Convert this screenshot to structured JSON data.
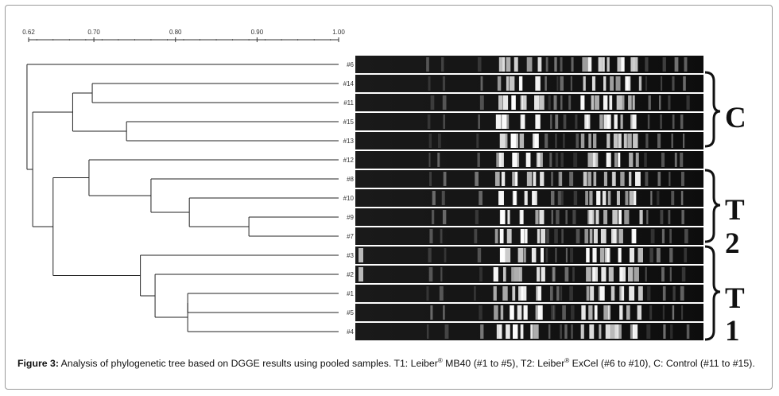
{
  "scale": {
    "ticks": [
      {
        "value": 0.62,
        "label": "0.62"
      },
      {
        "value": 0.7,
        "label": "0.70"
      },
      {
        "value": 0.8,
        "label": "0.80"
      },
      {
        "value": 0.9,
        "label": "0.90"
      },
      {
        "value": 1.0,
        "label": "1.00"
      }
    ]
  },
  "samples": [
    "#6",
    "#14",
    "#11",
    "#15",
    "#13",
    "#12",
    "#8",
    "#10",
    "#9",
    "#7",
    "#3",
    "#2",
    "#1",
    "#5",
    "#4"
  ],
  "dendrogram": [
    {
      "a": "#1",
      "b": "#5",
      "similarity": 0.815
    },
    {
      "a": "#1,#5",
      "b": "#4",
      "similarity": 0.815
    },
    {
      "a": "#1,#4,#5",
      "b": "#2",
      "similarity": 0.775
    },
    {
      "a": "#1,#2,#4,#5",
      "b": "#3",
      "similarity": 0.757
    },
    {
      "a": "#9",
      "b": "#7",
      "similarity": 0.89
    },
    {
      "a": "#7,#9",
      "b": "#10",
      "similarity": 0.817
    },
    {
      "a": "#7,#9,#10",
      "b": "#8",
      "similarity": 0.77
    },
    {
      "a": "#15",
      "b": "#13",
      "similarity": 0.74
    },
    {
      "a": "#14",
      "b": "#11",
      "similarity": 0.698
    },
    {
      "a": "#11,#14",
      "b": "#13,#15",
      "similarity": 0.674
    },
    {
      "a": "#7-#10",
      "b": "#12",
      "similarity": 0.694
    },
    {
      "a": "T1 cluster",
      "b": "T2 cluster",
      "similarity": 0.65
    },
    {
      "a": "C cluster",
      "b": "T",
      "similarity": 0.625
    },
    {
      "a": "all",
      "b": "#6",
      "similarity": 0.618
    }
  ],
  "groups": [
    {
      "label": "C",
      "from": "#14",
      "to": "#13"
    },
    {
      "label": "T",
      "sub": "2",
      "from": "#8",
      "to": "#7"
    },
    {
      "label": "T",
      "sub": "1",
      "from": "#3",
      "to": "#4"
    }
  ],
  "caption": {
    "prefix": "Figure 3:",
    "text": " Analysis of phylogenetic tree based on DGGE results using pooled samples. T1: Leiber",
    "reg1": "®",
    "mid": " MB40 (#1 to #5), T2: Leiber",
    "reg2": "®",
    "suffix": " ExCel (#6 to #10), C: Control (#11 to #15)."
  }
}
